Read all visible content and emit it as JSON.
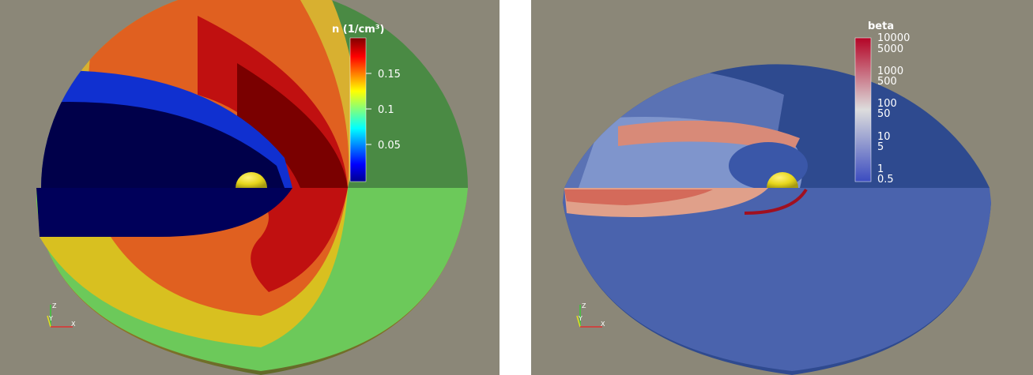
{
  "colors": {
    "background": "#8b8778",
    "left_cut": "#4a8a44",
    "left_top_face": "#6cc95a",
    "right_surface": "#2f4a8f",
    "right_top_face": "#4a63ad",
    "object": "#e6d61c"
  },
  "left_panel": {
    "colorbar": {
      "title": "n (1/cm³)",
      "ticks": [
        "0.15",
        "0.1",
        "0.05"
      ],
      "colormap": "jet"
    },
    "axes": {
      "z": "Z",
      "y": "Y",
      "x": "X"
    }
  },
  "right_panel": {
    "colorbar": {
      "title": "beta",
      "ticks": [
        "10000",
        "5000",
        "1000",
        "500",
        "100",
        "50",
        "10",
        "5",
        "1",
        "0.5"
      ],
      "colormap": "coolwarm",
      "scale": "log"
    },
    "axes": {
      "z": "Z",
      "y": "Y",
      "x": "X"
    }
  }
}
